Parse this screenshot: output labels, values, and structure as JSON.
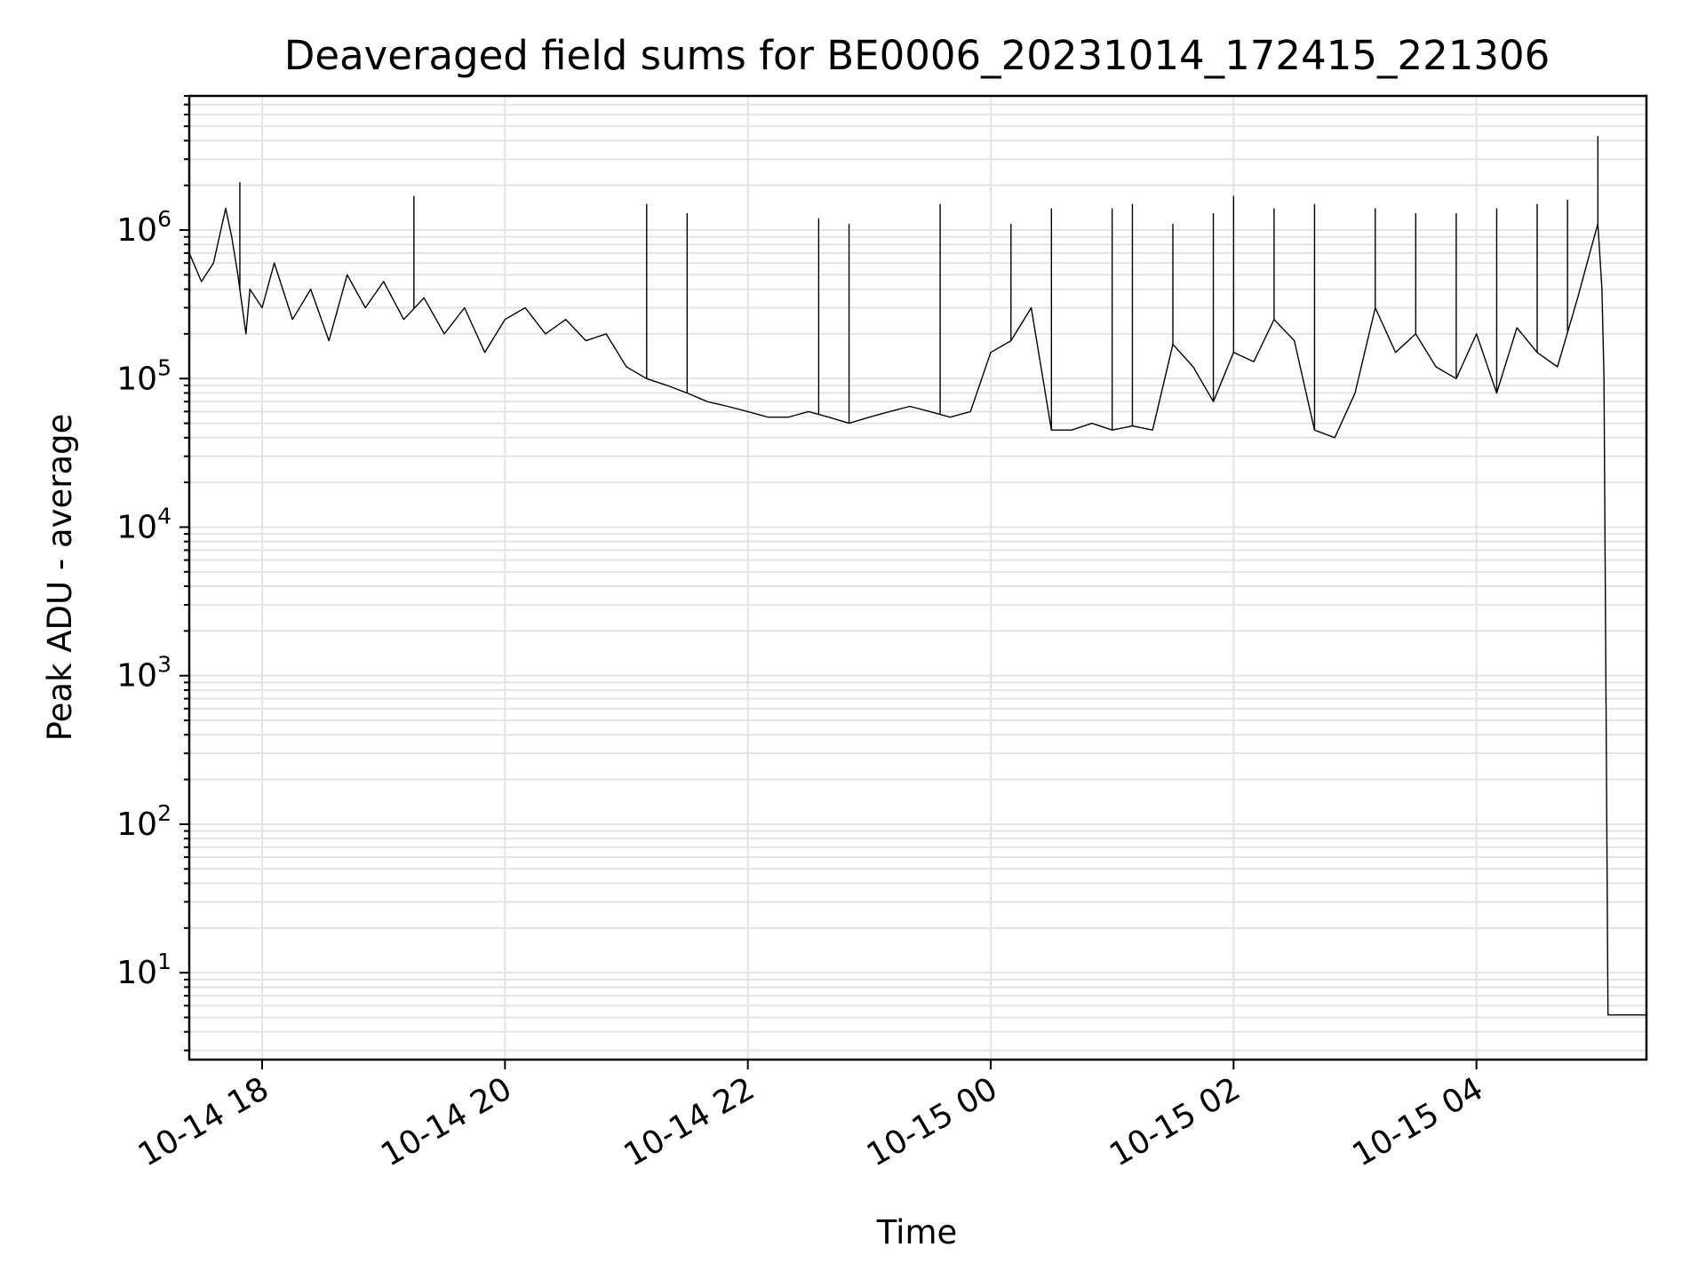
{
  "chart_data": {
    "type": "line",
    "title": "Deaveraged field sums for BE0006_20231014_172415_221306",
    "xlabel": "Time",
    "ylabel": "Peak ADU - average",
    "x_scale": "time",
    "y_scale": "log",
    "grid": true,
    "xlim": [
      "2023-10-14 17:24",
      "2023-10-15 05:24"
    ],
    "ylim": [
      2.6,
      8000000
    ],
    "x_ticks": [
      "10-14 18",
      "10-14 20",
      "10-14 22",
      "10-15 00",
      "10-15 02",
      "10-15 04"
    ],
    "y_ticks": [
      {
        "base": "10",
        "exp": "1"
      },
      {
        "base": "10",
        "exp": "2"
      },
      {
        "base": "10",
        "exp": "3"
      },
      {
        "base": "10",
        "exp": "4"
      },
      {
        "base": "10",
        "exp": "5"
      },
      {
        "base": "10",
        "exp": "6"
      }
    ],
    "series": [
      {
        "color": "#000000",
        "x": [
          "2023-10-14 17:24",
          "2023-10-14 17:30",
          "2023-10-14 17:36",
          "2023-10-14 17:42",
          "2023-10-14 17:45",
          "2023-10-14 17:48",
          "2023-10-14 17:52",
          "2023-10-14 17:54",
          "2023-10-14 18:00",
          "2023-10-14 18:06",
          "2023-10-14 18:15",
          "2023-10-14 18:24",
          "2023-10-14 18:33",
          "2023-10-14 18:42",
          "2023-10-14 18:51",
          "2023-10-14 19:00",
          "2023-10-14 19:10",
          "2023-10-14 19:20",
          "2023-10-14 19:30",
          "2023-10-14 19:40",
          "2023-10-14 19:50",
          "2023-10-14 20:00",
          "2023-10-14 20:10",
          "2023-10-14 20:20",
          "2023-10-14 20:30",
          "2023-10-14 20:40",
          "2023-10-14 20:50",
          "2023-10-14 21:00",
          "2023-10-14 21:10",
          "2023-10-14 21:20",
          "2023-10-14 21:30",
          "2023-10-14 21:40",
          "2023-10-14 21:50",
          "2023-10-14 22:00",
          "2023-10-14 22:10",
          "2023-10-14 22:20",
          "2023-10-14 22:30",
          "2023-10-14 22:40",
          "2023-10-14 22:50",
          "2023-10-14 23:00",
          "2023-10-14 23:10",
          "2023-10-14 23:20",
          "2023-10-14 23:30",
          "2023-10-14 23:40",
          "2023-10-14 23:50",
          "2023-10-15 00:00",
          "2023-10-15 00:10",
          "2023-10-15 00:20",
          "2023-10-15 00:30",
          "2023-10-15 00:40",
          "2023-10-15 00:50",
          "2023-10-15 01:00",
          "2023-10-15 01:10",
          "2023-10-15 01:20",
          "2023-10-15 01:30",
          "2023-10-15 01:40",
          "2023-10-15 01:50",
          "2023-10-15 02:00",
          "2023-10-15 02:10",
          "2023-10-15 02:20",
          "2023-10-15 02:30",
          "2023-10-15 02:40",
          "2023-10-15 02:50",
          "2023-10-15 03:00",
          "2023-10-15 03:10",
          "2023-10-15 03:20",
          "2023-10-15 03:30",
          "2023-10-15 03:40",
          "2023-10-15 03:50",
          "2023-10-15 04:00",
          "2023-10-15 04:10",
          "2023-10-15 04:20",
          "2023-10-15 04:30",
          "2023-10-15 04:40",
          "2023-10-15 04:50",
          "2023-10-15 04:56",
          "2023-10-15 05:00",
          "2023-10-15 05:02",
          "2023-10-15 05:03",
          "2023-10-15 05:05",
          "2023-10-15 05:24"
        ],
        "y": [
          700000,
          450000,
          600000,
          1400000,
          900000,
          500000,
          200000,
          400000,
          300000,
          600000,
          250000,
          400000,
          180000,
          500000,
          300000,
          450000,
          250000,
          350000,
          200000,
          300000,
          150000,
          250000,
          300000,
          200000,
          250000,
          180000,
          200000,
          120000,
          100000,
          90000,
          80000,
          70000,
          65000,
          60000,
          55000,
          55000,
          60000,
          55000,
          50000,
          55000,
          60000,
          65000,
          60000,
          55000,
          60000,
          150000,
          180000,
          300000,
          45000,
          45000,
          50000,
          45000,
          48000,
          45000,
          170000,
          120000,
          70000,
          150000,
          130000,
          250000,
          180000,
          45000,
          40000,
          80000,
          300000,
          150000,
          200000,
          120000,
          100000,
          200000,
          80000,
          220000,
          150000,
          120000,
          350000,
          700000,
          1100000,
          400000,
          100000,
          5.2,
          5.2
        ]
      }
    ],
    "spikes": [
      {
        "x": "2023-10-14 17:49",
        "y": 2100000
      },
      {
        "x": "2023-10-14 19:15",
        "y": 1700000
      },
      {
        "x": "2023-10-14 21:10",
        "y": 1500000
      },
      {
        "x": "2023-10-14 21:30",
        "y": 1300000
      },
      {
        "x": "2023-10-14 22:35",
        "y": 1200000
      },
      {
        "x": "2023-10-14 22:50",
        "y": 1100000
      },
      {
        "x": "2023-10-14 23:35",
        "y": 1500000
      },
      {
        "x": "2023-10-15 00:10",
        "y": 1100000
      },
      {
        "x": "2023-10-15 00:30",
        "y": 1400000
      },
      {
        "x": "2023-10-15 01:00",
        "y": 1400000
      },
      {
        "x": "2023-10-15 01:10",
        "y": 1500000
      },
      {
        "x": "2023-10-15 01:30",
        "y": 1100000
      },
      {
        "x": "2023-10-15 01:50",
        "y": 1300000
      },
      {
        "x": "2023-10-15 02:00",
        "y": 1700000
      },
      {
        "x": "2023-10-15 02:20",
        "y": 1400000
      },
      {
        "x": "2023-10-15 02:40",
        "y": 1500000
      },
      {
        "x": "2023-10-15 03:10",
        "y": 1400000
      },
      {
        "x": "2023-10-15 03:30",
        "y": 1300000
      },
      {
        "x": "2023-10-15 03:50",
        "y": 1300000
      },
      {
        "x": "2023-10-15 04:10",
        "y": 1400000
      },
      {
        "x": "2023-10-15 04:30",
        "y": 1500000
      },
      {
        "x": "2023-10-15 04:45",
        "y": 1600000
      },
      {
        "x": "2023-10-15 05:00",
        "y": 4300000
      }
    ]
  }
}
